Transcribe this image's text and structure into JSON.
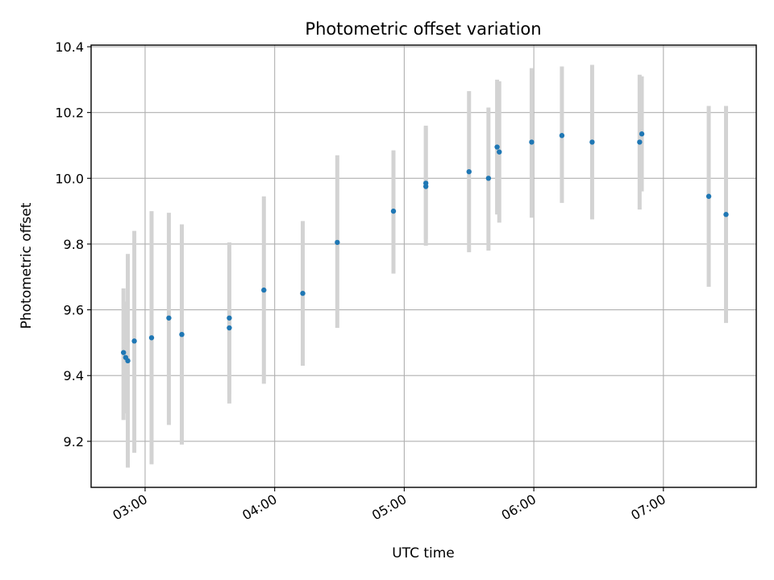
{
  "chart_data": {
    "type": "scatter",
    "title": "Photometric offset variation",
    "xlabel": "UTC time",
    "ylabel": "Photometric offset",
    "xlim": [
      "02:35",
      "07:43"
    ],
    "ylim": [
      9.06,
      10.405
    ],
    "grid": true,
    "x_ticks": [
      "03:00",
      "04:00",
      "05:00",
      "06:00",
      "07:00"
    ],
    "y_ticks": [
      9.2,
      9.4,
      9.6,
      9.8,
      10.0,
      10.2,
      10.4
    ],
    "y_tick_labels": [
      "9.2",
      "9.4",
      "9.6",
      "9.8",
      "10.0",
      "10.2",
      "10.4"
    ],
    "marker_color": "#1f77b4",
    "errorbar_color": "#d3d3d3",
    "series": [
      {
        "x": [
          "02:50",
          "02:51",
          "02:52",
          "02:55",
          "03:03",
          "03:11",
          "03:17",
          "03:39",
          "03:39",
          "03:55",
          "04:13",
          "04:29",
          "04:55",
          "05:10",
          "05:10",
          "05:30",
          "05:39",
          "05:43",
          "05:44",
          "05:59",
          "06:13",
          "06:27",
          "06:49",
          "06:50",
          "07:21",
          "07:29"
        ],
        "y": [
          9.47,
          9.455,
          9.445,
          9.505,
          9.515,
          9.575,
          9.525,
          9.545,
          9.575,
          9.66,
          9.65,
          9.805,
          9.9,
          9.975,
          9.985,
          10.02,
          10.0,
          10.095,
          10.08,
          10.11,
          10.13,
          10.11,
          10.11,
          10.135,
          9.945,
          9.89
        ],
        "y_lower": [
          9.265,
          9.285,
          9.12,
          9.165,
          9.13,
          9.25,
          9.19,
          9.315,
          9.345,
          9.375,
          9.43,
          9.545,
          9.71,
          9.795,
          9.815,
          9.775,
          9.78,
          9.89,
          9.865,
          9.88,
          9.925,
          9.875,
          9.905,
          9.96,
          9.67,
          9.56
        ],
        "y_upper": [
          9.665,
          9.625,
          9.77,
          9.84,
          9.9,
          9.895,
          9.86,
          9.775,
          9.805,
          9.945,
          9.87,
          10.07,
          10.085,
          10.16,
          10.155,
          10.265,
          10.215,
          10.3,
          10.295,
          10.335,
          10.34,
          10.345,
          10.315,
          10.31,
          10.22,
          10.22
        ]
      }
    ]
  }
}
